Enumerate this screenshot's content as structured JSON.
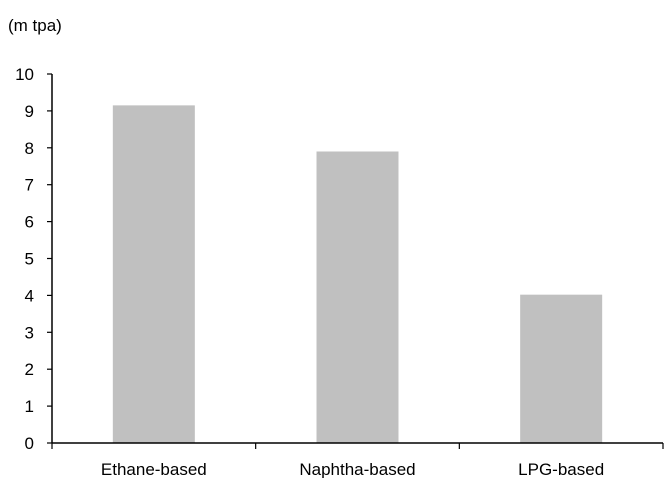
{
  "chart_data": {
    "type": "bar",
    "title": "",
    "ylabel": "(m tpa)",
    "xlabel": "",
    "categories": [
      "Ethane-based",
      "Naphtha-based",
      "LPG-based"
    ],
    "values": [
      9.15,
      7.9,
      4.02
    ],
    "ylim": [
      0,
      10
    ],
    "yticks": [
      "0",
      "1",
      "2",
      "3",
      "4",
      "5",
      "6",
      "7",
      "8",
      "9",
      "10"
    ],
    "grid": false,
    "legend": "none",
    "bar_color": "#c0c0c0",
    "axis_color": "#000000"
  }
}
